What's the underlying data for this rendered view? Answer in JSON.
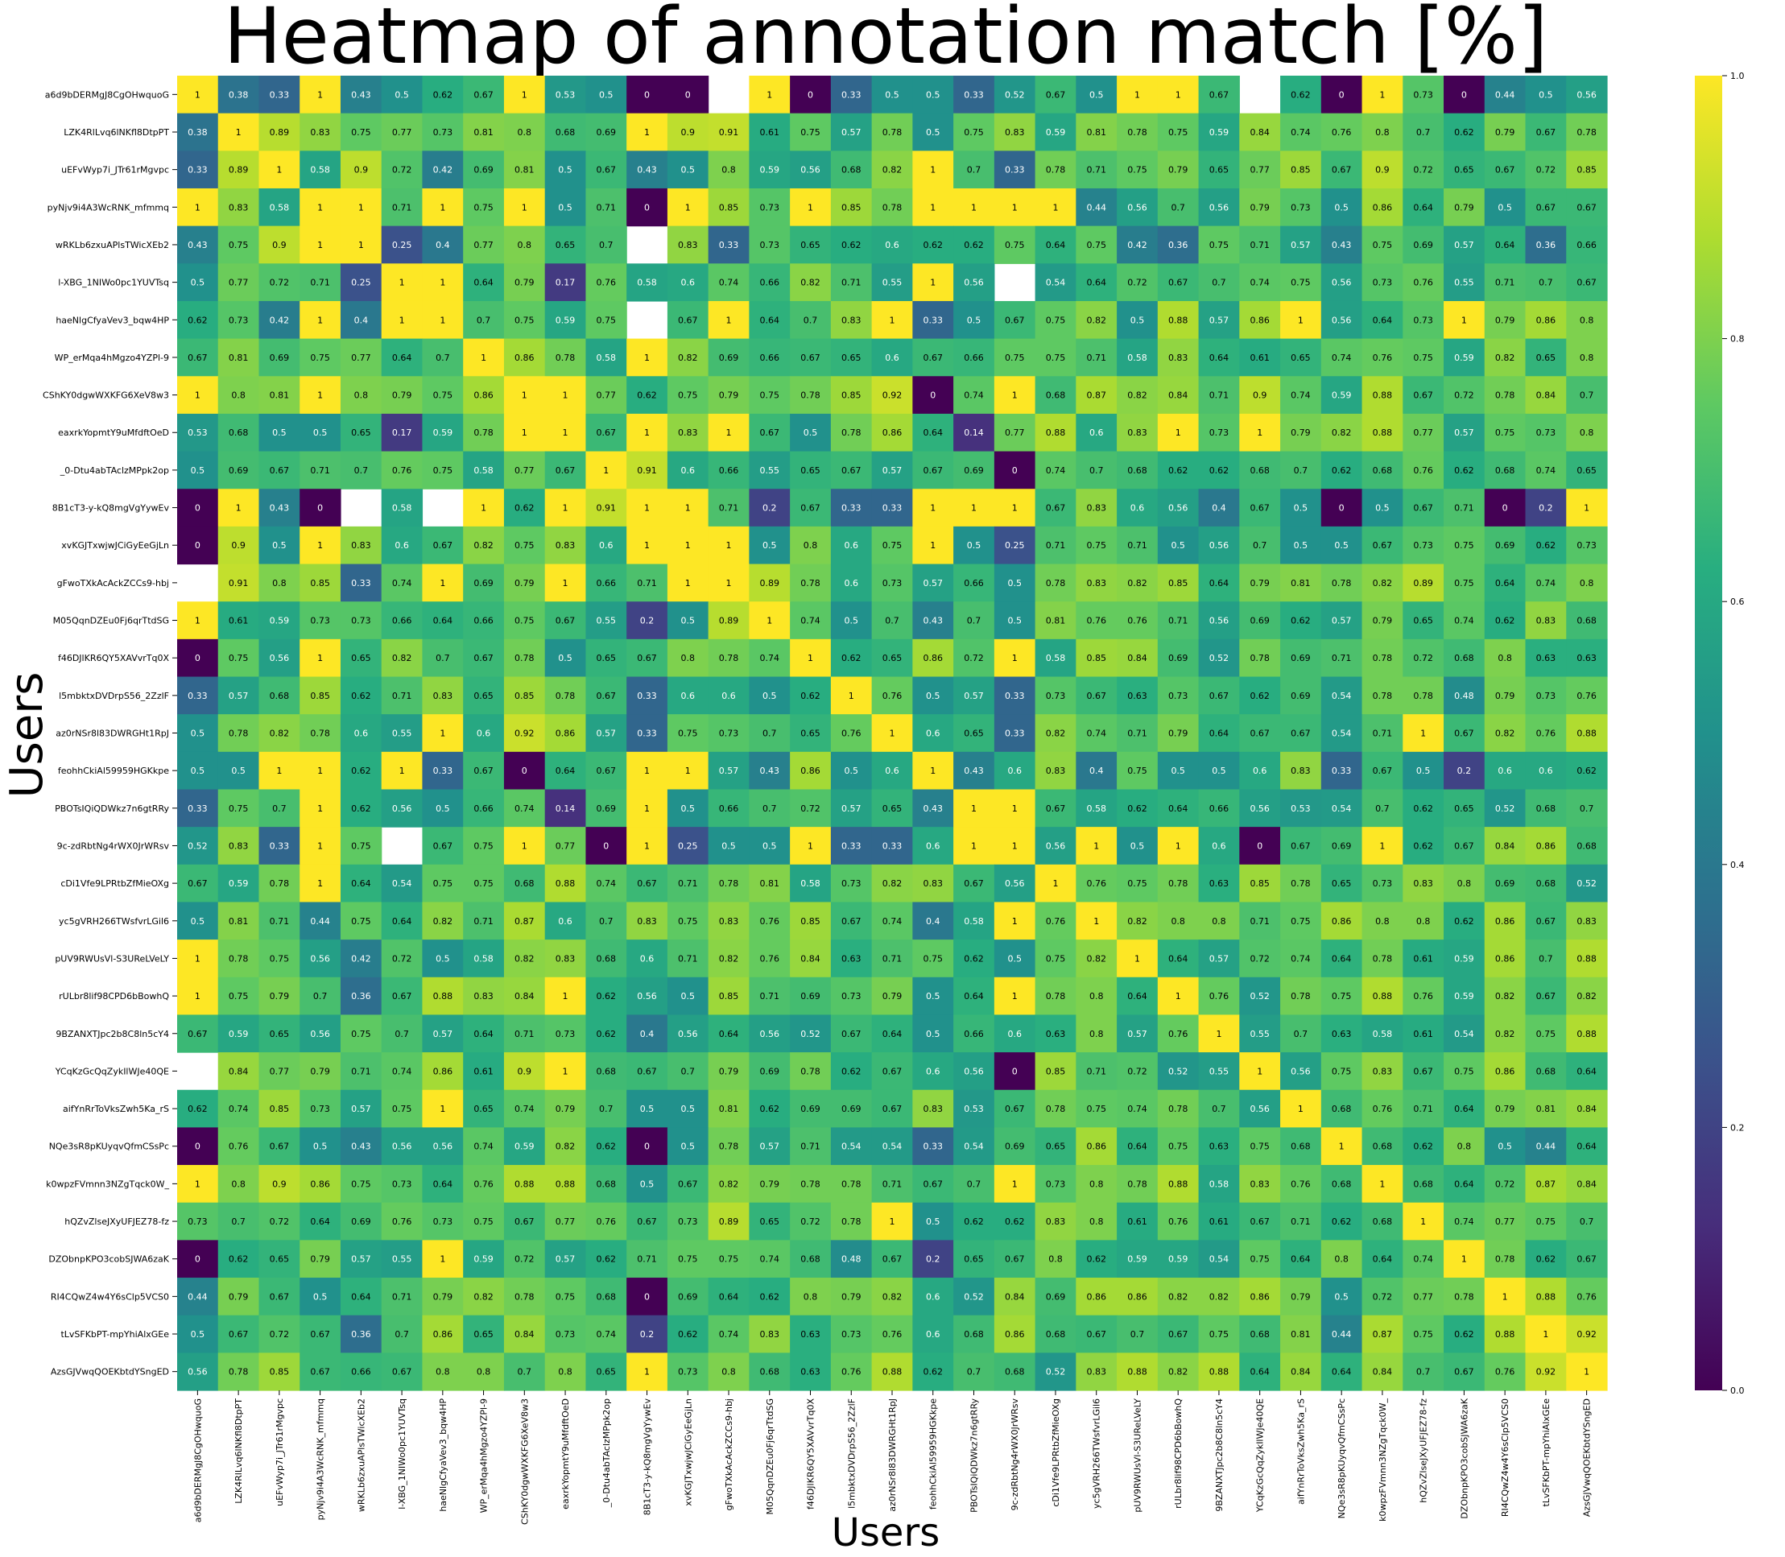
{
  "chart_data": {
    "type": "heatmap",
    "title": "Heatmap of annotation match [%]",
    "xlabel": "Users",
    "ylabel": "Users",
    "labels": [
      "a6d9bDERMgJ8CgOHwquoG",
      "LZK4RlLvq6lNKfl8DtpPT",
      "uEFvWyp7i_JTr61rMgvpc",
      "pyNjv9i4A3WcRNK_mfmmq",
      "wRKLb6zxuAPlsTWicXEb2",
      "l-XBG_1NIWo0pc1YUVTsq",
      "haeNlgCfyaVev3_bqw4HP",
      "WP_erMqa4hMgzo4YZPl-9",
      "CShKY0dgwWXKFG6XeV8w3",
      "eaxrkYopmtY9uMfdftOeD",
      "_0-Dtu4abTAclzMPpk2op",
      "8B1cT3-y-kQ8mgVgYywEv",
      "xvKGJTxwjwJCiGyEeGjLn",
      "gFwoTXkAcAckZCCs9-hbj",
      "M05QqnDZEu0Fj6qrTtdSG",
      "f46DJlKR6QY5XAVvrTq0X",
      "l5mbktxDVDrpS56_2ZzlF",
      "az0rNSr8l83DWRGHt1RpJ",
      "feohhCkiAl59959HGKkpe",
      "PBOTsIQiQDWkz7n6gtRRy",
      "9c-zdRbtNg4rWX0JrWRsv",
      "cDi1Vfe9LPRtbZfMieOXg",
      "yc5gVRH266TWsfvrLGil6",
      "pUV9RWUsVl-S3UReLVeLY",
      "rULbr8lif98CPD6bBowhQ",
      "9BZANXTJpc2b8C8ln5cY4",
      "YCqKzGcQqZykIlWJe40QE",
      "aifYnRrToVksZwh5Ka_rS",
      "NQe3sR8pKUyqvQfmCSsPc",
      "k0wpzFVmnn3NZgTqck0W_",
      "hQZvZlseJXyUFJEZ78-fz",
      "DZObnpKPO3cobSJWA6zaK",
      "RI4CQwZ4w4Y6sClp5VCS0",
      "tLvSFKbPT-mpYhiAlxGEe",
      "AzsGJVwqQOEKbtdYSngED"
    ],
    "matrix": [
      [
        1,
        0.38,
        0.33,
        1,
        0.43,
        0.5,
        0.62,
        0.67,
        1,
        0.53,
        0.5,
        0,
        0,
        null,
        1,
        0,
        0.33,
        0.5,
        0.5,
        0.33,
        0.52,
        0.67,
        0.5,
        1,
        1,
        0.67,
        null,
        0.62,
        0,
        1,
        0.73,
        0,
        0.44,
        0.5,
        0.56
      ],
      [
        0.38,
        1,
        0.89,
        0.83,
        0.75,
        0.77,
        0.73,
        0.81,
        0.8,
        0.68,
        0.69,
        1,
        0.9,
        0.91,
        0.61,
        0.75,
        0.57,
        0.78,
        0.5,
        0.75,
        0.83,
        0.59,
        0.81,
        0.78,
        0.75,
        0.59,
        0.84,
        0.74,
        0.76,
        0.8,
        0.7,
        0.62,
        0.79,
        0.67,
        0.78
      ],
      [
        0.33,
        0.89,
        1,
        0.58,
        0.9,
        0.72,
        0.42,
        0.69,
        0.81,
        0.5,
        0.67,
        0.43,
        0.5,
        0.8,
        0.59,
        0.56,
        0.68,
        0.82,
        1,
        0.7,
        0.33,
        0.78,
        0.71,
        0.75,
        0.79,
        0.65,
        0.77,
        0.85,
        0.67,
        0.9,
        0.72,
        0.65,
        0.67,
        0.72,
        0.85
      ],
      [
        1,
        0.83,
        0.58,
        1,
        1,
        0.71,
        1,
        0.75,
        1,
        0.5,
        0.71,
        0,
        1,
        0.85,
        0.73,
        1,
        0.85,
        0.78,
        1,
        1,
        1,
        1,
        0.44,
        0.56,
        0.7,
        0.56,
        0.79,
        0.73,
        0.5,
        0.86,
        0.64,
        0.79,
        0.5,
        0.67,
        0.67
      ],
      [
        0.43,
        0.75,
        0.9,
        1,
        1,
        0.25,
        0.4,
        0.77,
        0.8,
        0.65,
        0.7,
        null,
        0.83,
        0.33,
        0.73,
        0.65,
        0.62,
        0.6,
        0.62,
        0.62,
        0.75,
        0.64,
        0.75,
        0.42,
        0.36,
        0.75,
        0.71,
        0.57,
        0.43,
        0.75,
        0.69,
        0.57,
        0.64,
        0.36,
        0.66
      ],
      [
        0.5,
        0.77,
        0.72,
        0.71,
        0.25,
        1,
        1,
        0.64,
        0.79,
        0.17,
        0.76,
        0.58,
        0.6,
        0.74,
        0.66,
        0.82,
        0.71,
        0.55,
        1,
        0.56,
        null,
        0.54,
        0.64,
        0.72,
        0.67,
        0.7,
        0.74,
        0.75,
        0.56,
        0.73,
        0.76,
        0.55,
        0.71,
        0.7,
        0.67
      ],
      [
        0.62,
        0.73,
        0.42,
        1,
        0.4,
        1,
        1,
        0.7,
        0.75,
        0.59,
        0.75,
        null,
        0.67,
        1,
        0.64,
        0.7,
        0.83,
        1,
        0.33,
        0.5,
        0.67,
        0.75,
        0.82,
        0.5,
        0.88,
        0.57,
        0.86,
        1,
        0.56,
        0.64,
        0.73,
        1,
        0.79,
        0.86,
        0.8
      ],
      [
        0.67,
        0.81,
        0.69,
        0.75,
        0.77,
        0.64,
        0.7,
        1,
        0.86,
        0.78,
        0.58,
        1,
        0.82,
        0.69,
        0.66,
        0.67,
        0.65,
        0.6,
        0.67,
        0.66,
        0.75,
        0.75,
        0.71,
        0.58,
        0.83,
        0.64,
        0.61,
        0.65,
        0.74,
        0.76,
        0.75,
        0.59,
        0.82,
        0.65,
        0.8
      ],
      [
        1,
        0.8,
        0.81,
        1,
        0.8,
        0.79,
        0.75,
        0.86,
        1,
        1,
        0.77,
        0.62,
        0.75,
        0.79,
        0.75,
        0.78,
        0.85,
        0.92,
        0,
        0.74,
        1,
        0.68,
        0.87,
        0.82,
        0.84,
        0.71,
        0.9,
        0.74,
        0.59,
        0.88,
        0.67,
        0.72,
        0.78,
        0.84,
        0.7
      ],
      [
        0.53,
        0.68,
        0.5,
        0.5,
        0.65,
        0.17,
        0.59,
        0.78,
        1,
        1,
        0.67,
        1,
        0.83,
        1,
        0.67,
        0.5,
        0.78,
        0.86,
        0.64,
        0.14,
        0.77,
        0.88,
        0.6,
        0.83,
        1,
        0.73,
        1,
        0.79,
        0.82,
        0.88,
        0.77,
        0.57,
        0.75,
        0.73,
        0.8
      ],
      [
        0.5,
        0.69,
        0.67,
        0.71,
        0.7,
        0.76,
        0.75,
        0.58,
        0.77,
        0.67,
        1,
        0.91,
        0.6,
        0.66,
        0.55,
        0.65,
        0.67,
        0.57,
        0.67,
        0.69,
        0,
        0.74,
        0.7,
        0.68,
        0.62,
        0.62,
        0.68,
        0.7,
        0.62,
        0.68,
        0.76,
        0.62,
        0.68,
        0.74,
        0.65
      ],
      [
        0,
        1,
        0.43,
        0,
        null,
        0.58,
        null,
        1,
        0.62,
        1,
        0.91,
        1,
        1,
        0.71,
        0.2,
        0.67,
        0.33,
        0.33,
        1,
        1,
        1,
        0.67,
        0.83,
        0.6,
        0.56,
        0.4,
        0.67,
        0.5,
        0,
        0.5,
        0.67,
        0.71,
        0,
        0.2,
        1
      ],
      [
        0,
        0.9,
        0.5,
        1,
        0.83,
        0.6,
        0.67,
        0.82,
        0.75,
        0.83,
        0.6,
        1,
        1,
        1,
        0.5,
        0.8,
        0.6,
        0.75,
        1,
        0.5,
        0.25,
        0.71,
        0.75,
        0.71,
        0.5,
        0.56,
        0.7,
        0.5,
        0.5,
        0.67,
        0.73,
        0.75,
        0.69,
        0.62,
        0.73
      ],
      [
        null,
        0.91,
        0.8,
        0.85,
        0.33,
        0.74,
        1,
        0.69,
        0.79,
        1,
        0.66,
        0.71,
        1,
        1,
        0.89,
        0.78,
        0.6,
        0.73,
        0.57,
        0.66,
        0.5,
        0.78,
        0.83,
        0.82,
        0.85,
        0.64,
        0.79,
        0.81,
        0.78,
        0.82,
        0.89,
        0.75,
        0.64,
        0.74,
        0.8
      ],
      [
        1,
        0.61,
        0.59,
        0.73,
        0.73,
        0.66,
        0.64,
        0.66,
        0.75,
        0.67,
        0.55,
        0.2,
        0.5,
        0.89,
        1,
        0.74,
        0.5,
        0.7,
        0.43,
        0.7,
        0.5,
        0.81,
        0.76,
        0.76,
        0.71,
        0.56,
        0.69,
        0.62,
        0.57,
        0.79,
        0.65,
        0.74,
        0.62,
        0.83,
        0.68
      ],
      [
        0,
        0.75,
        0.56,
        1,
        0.65,
        0.82,
        0.7,
        0.67,
        0.78,
        0.5,
        0.65,
        0.67,
        0.8,
        0.78,
        0.74,
        1,
        0.62,
        0.65,
        0.86,
        0.72,
        1,
        0.58,
        0.85,
        0.84,
        0.69,
        0.52,
        0.78,
        0.69,
        0.71,
        0.78,
        0.72,
        0.68,
        0.8,
        0.63,
        0.63
      ],
      [
        0.33,
        0.57,
        0.68,
        0.85,
        0.62,
        0.71,
        0.83,
        0.65,
        0.85,
        0.78,
        0.67,
        0.33,
        0.6,
        0.6,
        0.5,
        0.62,
        1,
        0.76,
        0.5,
        0.57,
        0.33,
        0.73,
        0.67,
        0.63,
        0.73,
        0.67,
        0.62,
        0.69,
        0.54,
        0.78,
        0.78,
        0.48,
        0.79,
        0.73,
        0.76
      ],
      [
        0.5,
        0.78,
        0.82,
        0.78,
        0.6,
        0.55,
        1,
        0.6,
        0.92,
        0.86,
        0.57,
        0.33,
        0.75,
        0.73,
        0.7,
        0.65,
        0.76,
        1,
        0.6,
        0.65,
        0.33,
        0.82,
        0.74,
        0.71,
        0.79,
        0.64,
        0.67,
        0.67,
        0.54,
        0.71,
        1,
        0.67,
        0.82,
        0.76,
        0.88
      ],
      [
        0.5,
        0.5,
        1,
        1,
        0.62,
        1,
        0.33,
        0.67,
        0,
        0.64,
        0.67,
        1,
        1,
        0.57,
        0.43,
        0.86,
        0.5,
        0.6,
        1,
        0.43,
        0.6,
        0.83,
        0.4,
        0.75,
        0.5,
        0.5,
        0.6,
        0.83,
        0.33,
        0.67,
        0.5,
        0.2,
        0.6,
        0.6,
        0.62
      ],
      [
        0.33,
        0.75,
        0.7,
        1,
        0.62,
        0.56,
        0.5,
        0.66,
        0.74,
        0.14,
        0.69,
        1,
        0.5,
        0.66,
        0.7,
        0.72,
        0.57,
        0.65,
        0.43,
        1,
        1,
        0.67,
        0.58,
        0.62,
        0.64,
        0.66,
        0.56,
        0.53,
        0.54,
        0.7,
        0.62,
        0.65,
        0.52,
        0.68,
        0.7
      ],
      [
        0.52,
        0.83,
        0.33,
        1,
        0.75,
        null,
        0.67,
        0.75,
        1,
        0.77,
        0,
        1,
        0.25,
        0.5,
        0.5,
        1,
        0.33,
        0.33,
        0.6,
        1,
        1,
        0.56,
        1,
        0.5,
        1,
        0.6,
        0,
        0.67,
        0.69,
        1,
        0.62,
        0.67,
        0.84,
        0.86,
        0.68
      ],
      [
        0.67,
        0.59,
        0.78,
        1,
        0.64,
        0.54,
        0.75,
        0.75,
        0.68,
        0.88,
        0.74,
        0.67,
        0.71,
        0.78,
        0.81,
        0.58,
        0.73,
        0.82,
        0.83,
        0.67,
        0.56,
        1,
        0.76,
        0.75,
        0.78,
        0.63,
        0.85,
        0.78,
        0.65,
        0.73,
        0.83,
        0.8,
        0.69,
        0.68,
        0.52
      ],
      [
        0.5,
        0.81,
        0.71,
        0.44,
        0.75,
        0.64,
        0.82,
        0.71,
        0.87,
        0.6,
        0.7,
        0.83,
        0.75,
        0.83,
        0.76,
        0.85,
        0.67,
        0.74,
        0.4,
        0.58,
        1,
        0.76,
        1,
        0.82,
        0.8,
        0.8,
        0.71,
        0.75,
        0.86,
        0.8,
        0.8,
        0.62,
        0.86,
        0.67,
        0.83
      ],
      [
        1,
        0.78,
        0.75,
        0.56,
        0.42,
        0.72,
        0.5,
        0.58,
        0.82,
        0.83,
        0.68,
        0.6,
        0.71,
        0.82,
        0.76,
        0.84,
        0.63,
        0.71,
        0.75,
        0.62,
        0.5,
        0.75,
        0.82,
        1,
        0.64,
        0.57,
        0.72,
        0.74,
        0.64,
        0.78,
        0.61,
        0.59,
        0.86,
        0.7,
        0.88
      ],
      [
        1,
        0.75,
        0.79,
        0.7,
        0.36,
        0.67,
        0.88,
        0.83,
        0.84,
        1,
        0.62,
        0.56,
        0.5,
        0.85,
        0.71,
        0.69,
        0.73,
        0.79,
        0.5,
        0.64,
        1,
        0.78,
        0.8,
        0.64,
        1,
        0.76,
        0.52,
        0.78,
        0.75,
        0.88,
        0.76,
        0.59,
        0.82,
        0.67,
        0.82
      ],
      [
        0.67,
        0.59,
        0.65,
        0.56,
        0.75,
        0.7,
        0.57,
        0.64,
        0.71,
        0.73,
        0.62,
        0.4,
        0.56,
        0.64,
        0.56,
        0.52,
        0.67,
        0.64,
        0.5,
        0.66,
        0.6,
        0.63,
        0.8,
        0.57,
        0.76,
        1,
        0.55,
        0.7,
        0.63,
        0.58,
        0.61,
        0.54,
        0.82,
        0.75,
        0.88
      ],
      [
        null,
        0.84,
        0.77,
        0.79,
        0.71,
        0.74,
        0.86,
        0.61,
        0.9,
        1,
        0.68,
        0.67,
        0.7,
        0.79,
        0.69,
        0.78,
        0.62,
        0.67,
        0.6,
        0.56,
        0,
        0.85,
        0.71,
        0.72,
        0.52,
        0.55,
        1,
        0.56,
        0.75,
        0.83,
        0.67,
        0.75,
        0.86,
        0.68,
        0.64
      ],
      [
        0.62,
        0.74,
        0.85,
        0.73,
        0.57,
        0.75,
        1,
        0.65,
        0.74,
        0.79,
        0.7,
        0.5,
        0.5,
        0.81,
        0.62,
        0.69,
        0.69,
        0.67,
        0.83,
        0.53,
        0.67,
        0.78,
        0.75,
        0.74,
        0.78,
        0.7,
        0.56,
        1,
        0.68,
        0.76,
        0.71,
        0.64,
        0.79,
        0.81,
        0.84
      ],
      [
        0,
        0.76,
        0.67,
        0.5,
        0.43,
        0.56,
        0.56,
        0.74,
        0.59,
        0.82,
        0.62,
        0,
        0.5,
        0.78,
        0.57,
        0.71,
        0.54,
        0.54,
        0.33,
        0.54,
        0.69,
        0.65,
        0.86,
        0.64,
        0.75,
        0.63,
        0.75,
        0.68,
        1,
        0.68,
        0.62,
        0.8,
        0.5,
        0.44,
        0.64
      ],
      [
        1,
        0.8,
        0.9,
        0.86,
        0.75,
        0.73,
        0.64,
        0.76,
        0.88,
        0.88,
        0.68,
        0.5,
        0.67,
        0.82,
        0.79,
        0.78,
        0.78,
        0.71,
        0.67,
        0.7,
        1,
        0.73,
        0.8,
        0.78,
        0.88,
        0.58,
        0.83,
        0.76,
        0.68,
        1,
        0.68,
        0.64,
        0.72,
        0.87,
        0.84
      ],
      [
        0.73,
        0.7,
        0.72,
        0.64,
        0.69,
        0.76,
        0.73,
        0.75,
        0.67,
        0.77,
        0.76,
        0.67,
        0.73,
        0.89,
        0.65,
        0.72,
        0.78,
        1,
        0.5,
        0.62,
        0.62,
        0.83,
        0.8,
        0.61,
        0.76,
        0.61,
        0.67,
        0.71,
        0.62,
        0.68,
        1,
        0.74,
        0.77,
        0.75,
        0.7
      ],
      [
        0,
        0.62,
        0.65,
        0.79,
        0.57,
        0.55,
        1,
        0.59,
        0.72,
        0.57,
        0.62,
        0.71,
        0.75,
        0.75,
        0.74,
        0.68,
        0.48,
        0.67,
        0.2,
        0.65,
        0.67,
        0.8,
        0.62,
        0.59,
        0.59,
        0.54,
        0.75,
        0.64,
        0.8,
        0.64,
        0.74,
        1,
        0.78,
        0.62,
        0.67
      ],
      [
        0.44,
        0.79,
        0.67,
        0.5,
        0.64,
        0.71,
        0.79,
        0.82,
        0.78,
        0.75,
        0.68,
        0,
        0.69,
        0.64,
        0.62,
        0.8,
        0.79,
        0.82,
        0.6,
        0.52,
        0.84,
        0.69,
        0.86,
        0.86,
        0.82,
        0.82,
        0.86,
        0.79,
        0.5,
        0.72,
        0.77,
        0.78,
        1,
        0.88,
        0.76
      ],
      [
        0.5,
        0.67,
        0.72,
        0.67,
        0.36,
        0.7,
        0.86,
        0.65,
        0.84,
        0.73,
        0.74,
        0.2,
        0.62,
        0.74,
        0.83,
        0.63,
        0.73,
        0.76,
        0.6,
        0.68,
        0.86,
        0.68,
        0.67,
        0.7,
        0.67,
        0.75,
        0.68,
        0.81,
        0.44,
        0.87,
        0.75,
        0.62,
        0.88,
        1,
        0.92
      ],
      [
        0.56,
        0.78,
        0.85,
        0.67,
        0.66,
        0.67,
        0.8,
        0.8,
        0.7,
        0.8,
        0.65,
        1,
        0.73,
        0.8,
        0.68,
        0.63,
        0.76,
        0.88,
        0.62,
        0.7,
        0.68,
        0.52,
        0.83,
        0.88,
        0.82,
        0.88,
        0.64,
        0.84,
        0.64,
        0.84,
        0.7,
        0.67,
        0.76,
        0.92,
        1
      ]
    ],
    "colorscale": "viridis",
    "vmin": 0,
    "vmax": 1,
    "colorbar_ticks": [
      "0.0",
      "0.2",
      "0.4",
      "0.6",
      "0.8",
      "1.0"
    ],
    "legend": "colorbar-right"
  }
}
